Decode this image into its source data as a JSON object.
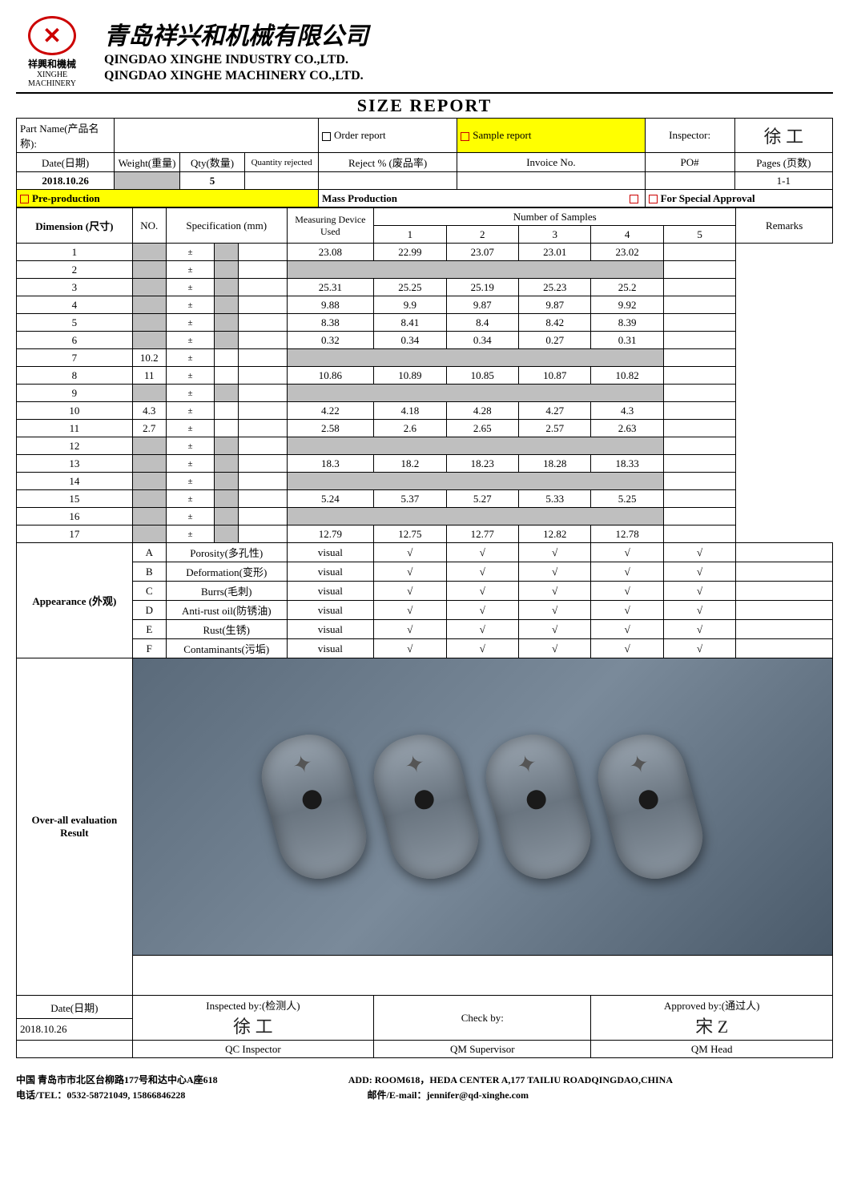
{
  "company": {
    "cn": "青岛祥兴和机械有限公司",
    "en1": "QINGDAO XINGHE INDUSTRY CO.,LTD.",
    "en2": "QINGDAO XINGHE MACHINERY CO.,LTD.",
    "logo_brand": "祥興和機械",
    "logo_sub": "XINGHE MACHINERY"
  },
  "title": "SIZE    REPORT",
  "hdr": {
    "part_name_lbl": "Part Name(产品名称):",
    "order_report": "Order report",
    "sample_report": "Sample report",
    "inspector_lbl": "Inspector:",
    "inspector_val": "徐 工",
    "date_lbl": "Date(日期)",
    "weight_lbl": "Weight(重量)",
    "qty_lbl": "Qty(数量)",
    "qty_rej_lbl": "Quantity rejected",
    "reject_pct_lbl": "Reject % (废品率)",
    "invoice_lbl": "Invoice No.",
    "po_lbl": "PO#",
    "pages_lbl": "Pages (页数)",
    "date_val": "2018.10.26",
    "qty_val": "5",
    "pages_val": "1-1",
    "preprod": "Pre-production",
    "massprod": "Mass Production",
    "special": "For Special Approval"
  },
  "cols": {
    "no": "NO.",
    "spec": "Specification (mm)",
    "device": "Measuring Device Used",
    "samples": "Number of Samples",
    "remarks": "Remarks",
    "s1": "1",
    "s2": "2",
    "s3": "3",
    "s4": "4",
    "s5": "5"
  },
  "dim_lbl": "Dimension (尺寸)",
  "app_lbl": "Appearance (外观)",
  "tol": "±",
  "dim_rows": [
    {
      "no": "1",
      "spec": "",
      "grey": true,
      "v": [
        "23.08",
        "22.99",
        "23.07",
        "23.01",
        "23.02"
      ]
    },
    {
      "no": "2",
      "spec": "",
      "grey": true,
      "blank": true
    },
    {
      "no": "3",
      "spec": "",
      "grey": true,
      "v": [
        "25.31",
        "25.25",
        "25.19",
        "25.23",
        "25.2"
      ]
    },
    {
      "no": "4",
      "spec": "",
      "grey": true,
      "v": [
        "9.88",
        "9.9",
        "9.87",
        "9.87",
        "9.92"
      ]
    },
    {
      "no": "5",
      "spec": "",
      "grey": true,
      "v": [
        "8.38",
        "8.41",
        "8.4",
        "8.42",
        "8.39"
      ]
    },
    {
      "no": "6",
      "spec": "",
      "grey": true,
      "v": [
        "0.32",
        "0.34",
        "0.34",
        "0.27",
        "0.31"
      ]
    },
    {
      "no": "7",
      "spec": "10.2",
      "grey": false,
      "blank": true
    },
    {
      "no": "8",
      "spec": "11",
      "grey": false,
      "v": [
        "10.86",
        "10.89",
        "10.85",
        "10.87",
        "10.82"
      ]
    },
    {
      "no": "9",
      "spec": "",
      "grey": true,
      "blank": true
    },
    {
      "no": "10",
      "spec": "4.3",
      "grey": false,
      "v": [
        "4.22",
        "4.18",
        "4.28",
        "4.27",
        "4.3"
      ]
    },
    {
      "no": "11",
      "spec": "2.7",
      "grey": false,
      "v": [
        "2.58",
        "2.6",
        "2.65",
        "2.57",
        "2.63"
      ]
    },
    {
      "no": "12",
      "spec": "",
      "grey": true,
      "blank": true
    },
    {
      "no": "13",
      "spec": "",
      "grey": true,
      "v": [
        "18.3",
        "18.2",
        "18.23",
        "18.28",
        "18.33"
      ]
    },
    {
      "no": "14",
      "spec": "",
      "grey": true,
      "blank": true
    },
    {
      "no": "15",
      "spec": "",
      "grey": true,
      "v": [
        "5.24",
        "5.37",
        "5.27",
        "5.33",
        "5.25"
      ]
    },
    {
      "no": "16",
      "spec": "",
      "grey": true,
      "blank": true
    },
    {
      "no": "17",
      "spec": "",
      "grey": true,
      "v": [
        "12.79",
        "12.75",
        "12.77",
        "12.82",
        "12.78"
      ]
    }
  ],
  "app_rows": [
    {
      "no": "A",
      "label": "Porosity(多孔性)",
      "dev": "visual"
    },
    {
      "no": "B",
      "label": "Deformation(变形)",
      "dev": "visual"
    },
    {
      "no": "C",
      "label": "Burrs(毛刺)",
      "dev": "visual"
    },
    {
      "no": "D",
      "label": "Anti-rust oil(防锈油)",
      "dev": "visual"
    },
    {
      "no": "E",
      "label": "Rust(生锈)",
      "dev": "visual"
    },
    {
      "no": "F",
      "label": "Contaminants(污垢)",
      "dev": "visual"
    }
  ],
  "check": "√",
  "eval_lbl": "Over-all evaluation Result",
  "sign": {
    "date_lbl": "Date(日期)",
    "date_val": "2018.10.26",
    "insp_lbl": "Inspected by:(检测人)",
    "insp_sig": "徐 工",
    "insp_role": "QC Inspector",
    "check_lbl": "Check by:",
    "check_role": "QM Supervisor",
    "appr_lbl": "Approved by:(通过人)",
    "appr_sig": "宋 Z",
    "appr_role": "QM Head"
  },
  "footer": {
    "addr_cn": "中国 青岛市市北区台柳路177号和达中心A座618",
    "addr_en": "ADD: ROOM618，HEDA CENTER A,177 TAILIU ROADQINGDAO,CHINA",
    "tel": "电话/TEL：0532-58721049, 15866846228",
    "email": "邮件/E-mail：jennifer@qd-xinghe.com"
  }
}
